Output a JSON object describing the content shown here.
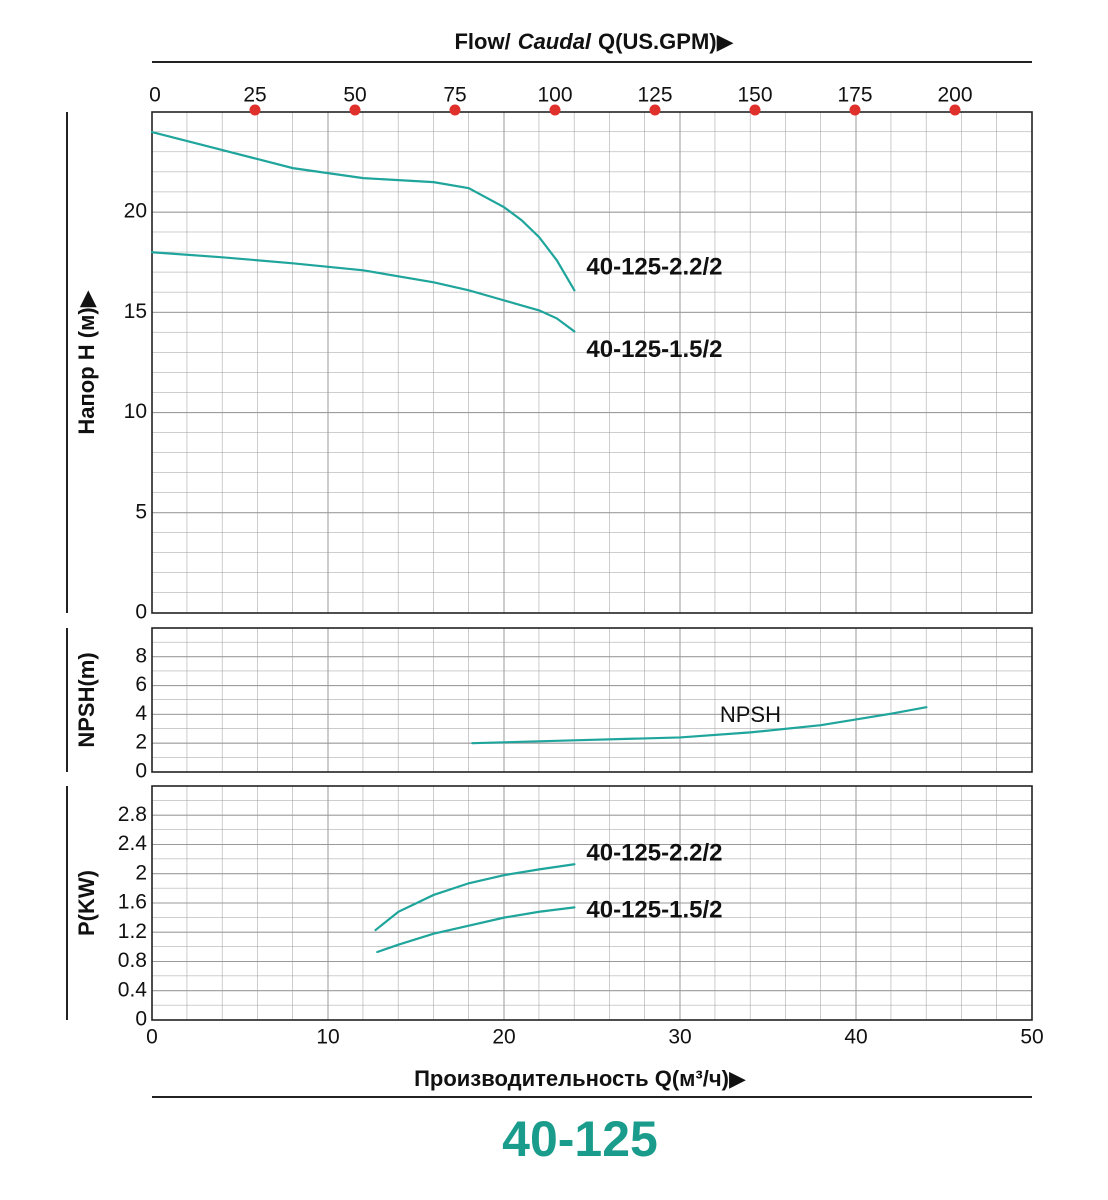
{
  "chart_data": [
    {
      "type": "line",
      "x2label": [
        "Flow/",
        "Caudal",
        "Q(US.GPM)▶"
      ],
      "x2lim": [
        0,
        220
      ],
      "x2ticks": [
        0,
        25,
        50,
        75,
        100,
        125,
        150,
        175,
        200
      ],
      "x2tick_marker_color": "#e0302c",
      "ylabel": "Напор H (м)▶",
      "xlim": [
        0,
        50
      ],
      "ylim": [
        0,
        25
      ],
      "yticks": [
        0,
        5,
        10,
        15,
        20
      ],
      "grid": true,
      "series": [
        {
          "name": "40-125-2.2/2",
          "color": "#1fa59c",
          "x": [
            0,
            4,
            8,
            12,
            16,
            18,
            20,
            21,
            22,
            23,
            24
          ],
          "values": [
            24,
            23.1,
            22.2,
            21.7,
            21.5,
            21.2,
            20.25,
            19.6,
            18.75,
            17.6,
            16.1
          ]
        },
        {
          "name": "40-125-1.5/2",
          "color": "#1fa59c",
          "x": [
            0,
            4,
            8,
            12,
            16,
            18,
            20,
            21,
            22,
            23,
            24
          ],
          "values": [
            18,
            17.75,
            17.45,
            17.1,
            16.5,
            16.1,
            15.6,
            15.35,
            15.1,
            14.7,
            14.05
          ]
        }
      ]
    },
    {
      "type": "line",
      "ylabel": "NPSH(m)",
      "xlim": [
        0,
        50
      ],
      "ylim": [
        0,
        10
      ],
      "yticks": [
        0,
        2,
        4,
        6,
        8
      ],
      "grid": true,
      "series": [
        {
          "name": "NPSH",
          "color": "#1fa59c",
          "x": [
            18.2,
            24,
            30,
            34,
            38,
            40,
            42,
            44
          ],
          "values": [
            2.0,
            2.2,
            2.4,
            2.75,
            3.25,
            3.65,
            4.05,
            4.5
          ]
        }
      ]
    },
    {
      "type": "line",
      "ylabel": "P(KW)",
      "xlabel": "Производительность Q(м³/ч)▶",
      "xlim": [
        0,
        50
      ],
      "xticks": [
        0,
        10,
        20,
        30,
        40,
        50
      ],
      "ylim": [
        0,
        3.2
      ],
      "yticks": [
        0,
        0.4,
        0.8,
        1.2,
        1.6,
        2,
        2.4,
        2.8
      ],
      "grid": true,
      "series": [
        {
          "name": "40-125-2.2/2",
          "color": "#1fa59c",
          "x": [
            12.7,
            14,
            16,
            18,
            20,
            22,
            24
          ],
          "values": [
            1.23,
            1.48,
            1.71,
            1.87,
            1.98,
            2.06,
            2.13
          ]
        },
        {
          "name": "40-125-1.5/2",
          "color": "#1fa59c",
          "x": [
            12.8,
            14,
            16,
            18,
            20,
            22,
            24
          ],
          "values": [
            0.93,
            1.03,
            1.18,
            1.29,
            1.4,
            1.48,
            1.54
          ]
        }
      ]
    }
  ],
  "model": "40-125"
}
